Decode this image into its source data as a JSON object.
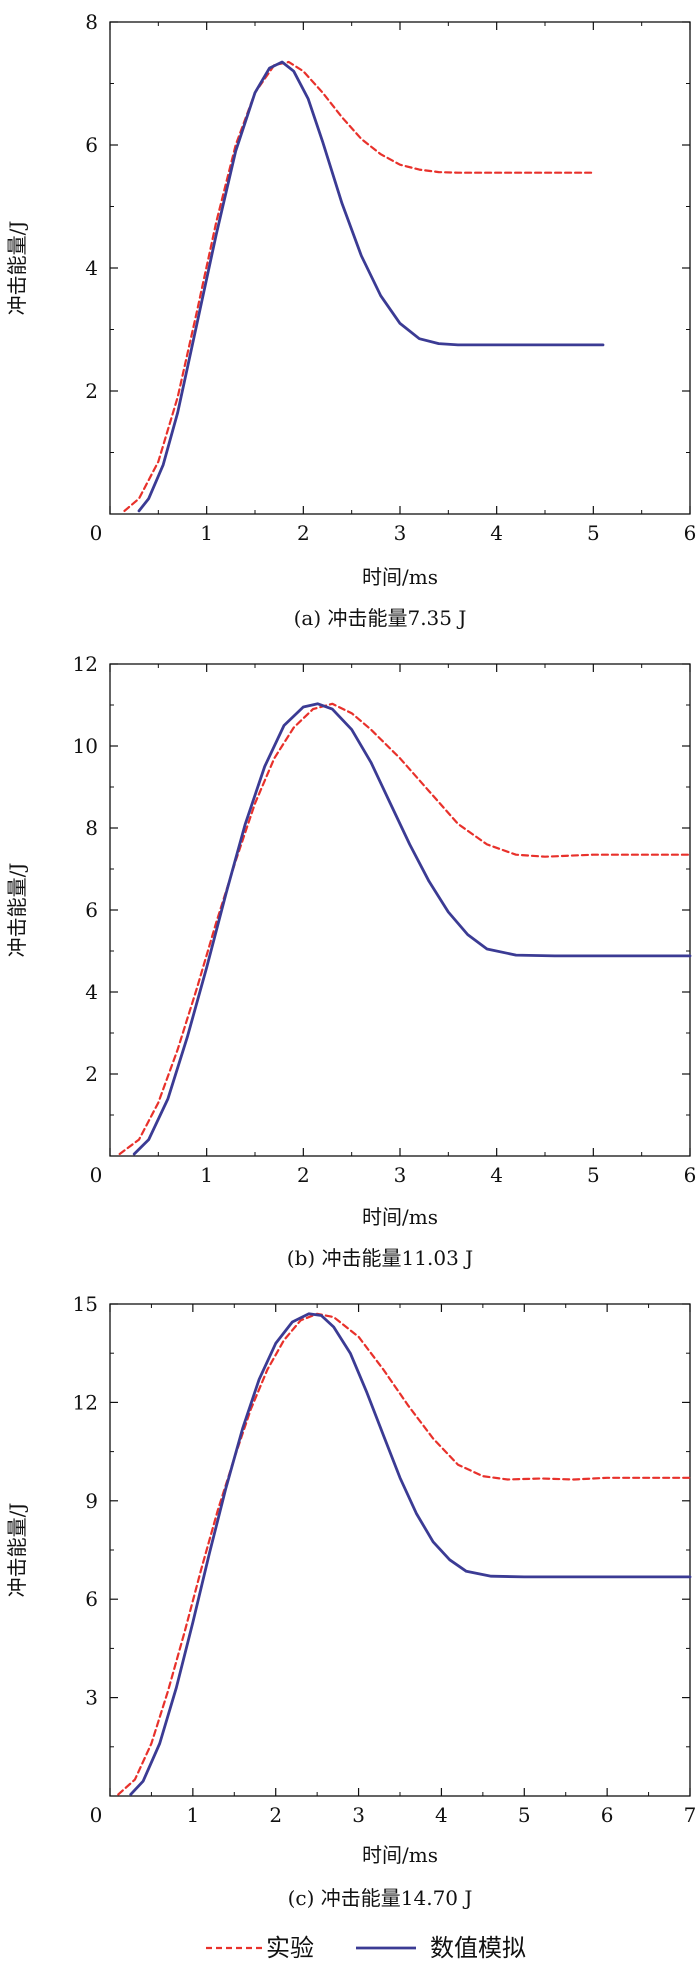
{
  "legend": {
    "experiment_label": "实验",
    "simulation_label": "数值模拟"
  },
  "colors": {
    "experiment": "#e8312b",
    "simulation": "#3b3b94",
    "axis": "#111111"
  },
  "chart_data": [
    {
      "type": "line",
      "caption": "(a) 冲击能量7.35 J",
      "xlabel": "时间/ms",
      "ylabel": "冲击能量/J",
      "xlim": [
        0,
        6
      ],
      "ylim": [
        0,
        8
      ],
      "xticks": [
        0,
        1,
        2,
        3,
        4,
        5,
        6
      ],
      "yticks": [
        2,
        4,
        6,
        8
      ],
      "y_origin_label": "0",
      "series": [
        {
          "name": "实验",
          "style": "dashed",
          "x": [
            0.15,
            0.3,
            0.5,
            0.7,
            0.9,
            1.1,
            1.3,
            1.5,
            1.7,
            1.85,
            2.0,
            2.2,
            2.4,
            2.6,
            2.8,
            3.0,
            3.2,
            3.4,
            3.6,
            4.0,
            4.5,
            5.0
          ],
          "y": [
            0.05,
            0.25,
            0.85,
            1.9,
            3.3,
            4.75,
            6.0,
            6.85,
            7.3,
            7.35,
            7.2,
            6.85,
            6.45,
            6.1,
            5.85,
            5.68,
            5.6,
            5.56,
            5.55,
            5.55,
            5.55,
            5.55
          ]
        },
        {
          "name": "数值模拟",
          "style": "solid",
          "x": [
            0.3,
            0.4,
            0.55,
            0.7,
            0.9,
            1.1,
            1.3,
            1.5,
            1.65,
            1.78,
            1.9,
            2.05,
            2.2,
            2.4,
            2.6,
            2.8,
            3.0,
            3.2,
            3.4,
            3.6,
            4.0,
            4.5,
            5.1
          ],
          "y": [
            0.05,
            0.25,
            0.8,
            1.65,
            3.1,
            4.55,
            5.9,
            6.85,
            7.25,
            7.35,
            7.2,
            6.75,
            6.05,
            5.05,
            4.2,
            3.55,
            3.1,
            2.85,
            2.77,
            2.75,
            2.75,
            2.75,
            2.75
          ]
        }
      ]
    },
    {
      "type": "line",
      "caption": "(b) 冲击能量11.03 J",
      "xlabel": "时间/ms",
      "ylabel": "冲击能量/J",
      "xlim": [
        0,
        6
      ],
      "ylim": [
        0,
        12
      ],
      "xticks": [
        0,
        1,
        2,
        3,
        4,
        5,
        6
      ],
      "yticks": [
        2,
        4,
        6,
        8,
        10,
        12
      ],
      "y_origin_label": "0",
      "series": [
        {
          "name": "实验",
          "style": "dashed",
          "x": [
            0.1,
            0.3,
            0.5,
            0.7,
            0.9,
            1.1,
            1.3,
            1.5,
            1.7,
            1.9,
            2.1,
            2.3,
            2.5,
            2.7,
            3.0,
            3.3,
            3.6,
            3.9,
            4.2,
            4.5,
            5.0,
            5.5,
            6.0
          ],
          "y": [
            0.05,
            0.4,
            1.3,
            2.6,
            4.1,
            5.7,
            7.2,
            8.6,
            9.7,
            10.45,
            10.9,
            11.03,
            10.8,
            10.4,
            9.7,
            8.9,
            8.1,
            7.6,
            7.35,
            7.3,
            7.35,
            7.35,
            7.35
          ]
        },
        {
          "name": "数值模拟",
          "style": "solid",
          "x": [
            0.25,
            0.4,
            0.6,
            0.8,
            1.0,
            1.2,
            1.4,
            1.6,
            1.8,
            2.0,
            2.15,
            2.3,
            2.5,
            2.7,
            2.9,
            3.1,
            3.3,
            3.5,
            3.7,
            3.9,
            4.2,
            4.6,
            5.0,
            6.0
          ],
          "y": [
            0.05,
            0.4,
            1.4,
            2.9,
            4.6,
            6.4,
            8.1,
            9.5,
            10.5,
            10.95,
            11.03,
            10.9,
            10.4,
            9.6,
            8.6,
            7.6,
            6.7,
            5.95,
            5.4,
            5.05,
            4.9,
            4.88,
            4.88,
            4.88
          ]
        }
      ]
    },
    {
      "type": "line",
      "caption": "(c) 冲击能量14.70 J",
      "xlabel": "时间/ms",
      "ylabel": "冲击能量/J",
      "xlim": [
        0,
        7
      ],
      "ylim": [
        0,
        15
      ],
      "xticks": [
        0,
        1,
        2,
        3,
        4,
        5,
        6,
        7
      ],
      "yticks": [
        3,
        6,
        9,
        12,
        15
      ],
      "y_origin_label": "0",
      "series": [
        {
          "name": "实验",
          "style": "dashed",
          "x": [
            0.1,
            0.3,
            0.5,
            0.7,
            0.9,
            1.1,
            1.3,
            1.5,
            1.7,
            1.9,
            2.1,
            2.3,
            2.5,
            2.7,
            3.0,
            3.3,
            3.6,
            3.9,
            4.2,
            4.5,
            4.8,
            5.2,
            5.6,
            6.0,
            6.5,
            7.0
          ],
          "y": [
            0.05,
            0.5,
            1.6,
            3.2,
            5.0,
            6.9,
            8.7,
            10.3,
            11.8,
            13.0,
            13.9,
            14.5,
            14.7,
            14.6,
            14.0,
            13.0,
            11.9,
            10.9,
            10.1,
            9.75,
            9.65,
            9.68,
            9.65,
            9.7,
            9.7,
            9.7
          ]
        },
        {
          "name": "数值模拟",
          "style": "solid",
          "x": [
            0.25,
            0.4,
            0.6,
            0.8,
            1.0,
            1.2,
            1.4,
            1.6,
            1.8,
            2.0,
            2.2,
            2.4,
            2.55,
            2.7,
            2.9,
            3.1,
            3.3,
            3.5,
            3.7,
            3.9,
            4.1,
            4.3,
            4.6,
            5.0,
            6.0,
            7.0
          ],
          "y": [
            0.05,
            0.45,
            1.6,
            3.3,
            5.3,
            7.4,
            9.4,
            11.2,
            12.7,
            13.8,
            14.45,
            14.7,
            14.65,
            14.3,
            13.5,
            12.3,
            11.0,
            9.7,
            8.6,
            7.75,
            7.2,
            6.85,
            6.7,
            6.68,
            6.68,
            6.68
          ]
        }
      ]
    }
  ]
}
